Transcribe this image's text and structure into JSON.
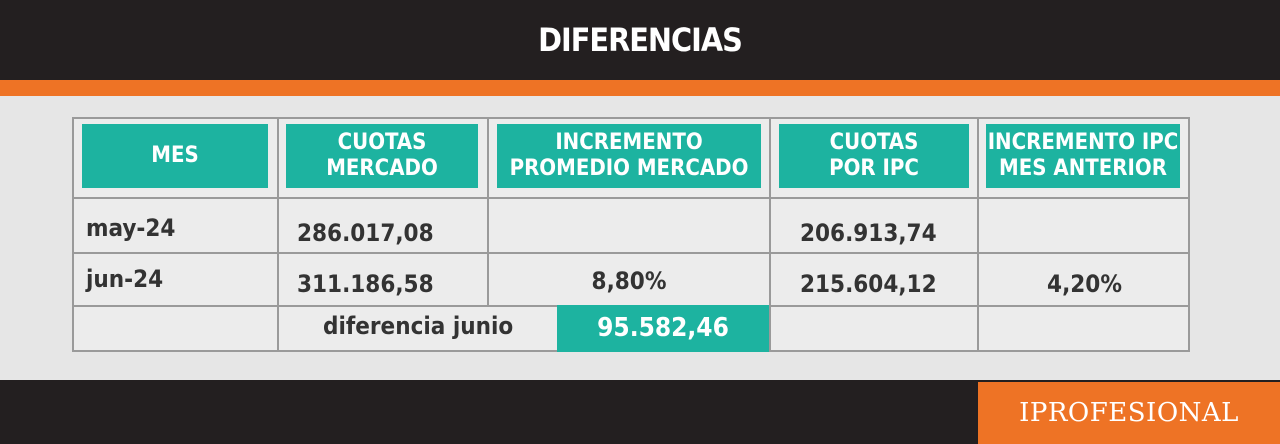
{
  "header": {
    "title": "DIFERENCIAS"
  },
  "table": {
    "columns": [
      "MES",
      "CUOTAS\nMERCADO",
      "INCREMENTO\nPROMEDIO MERCADO",
      "CUOTAS\nPOR IPC",
      "INCREMENTO IPC\nMES ANTERIOR"
    ],
    "rows": [
      {
        "mes": "may-24",
        "cuotas_mercado": "286.017,08",
        "cuotas_ipc": "206.913,74"
      },
      {
        "mes": "jun-24",
        "cuotas_mercado": "311.186,58",
        "incremento_mercado": "8,80%",
        "cuotas_ipc": "215.604,12",
        "incremento_ipc": "4,20%"
      }
    ],
    "difference": {
      "label": "diferencia junio",
      "value": "95.582,46"
    }
  },
  "footer": {
    "brand": "IPROFESIONAL"
  }
}
